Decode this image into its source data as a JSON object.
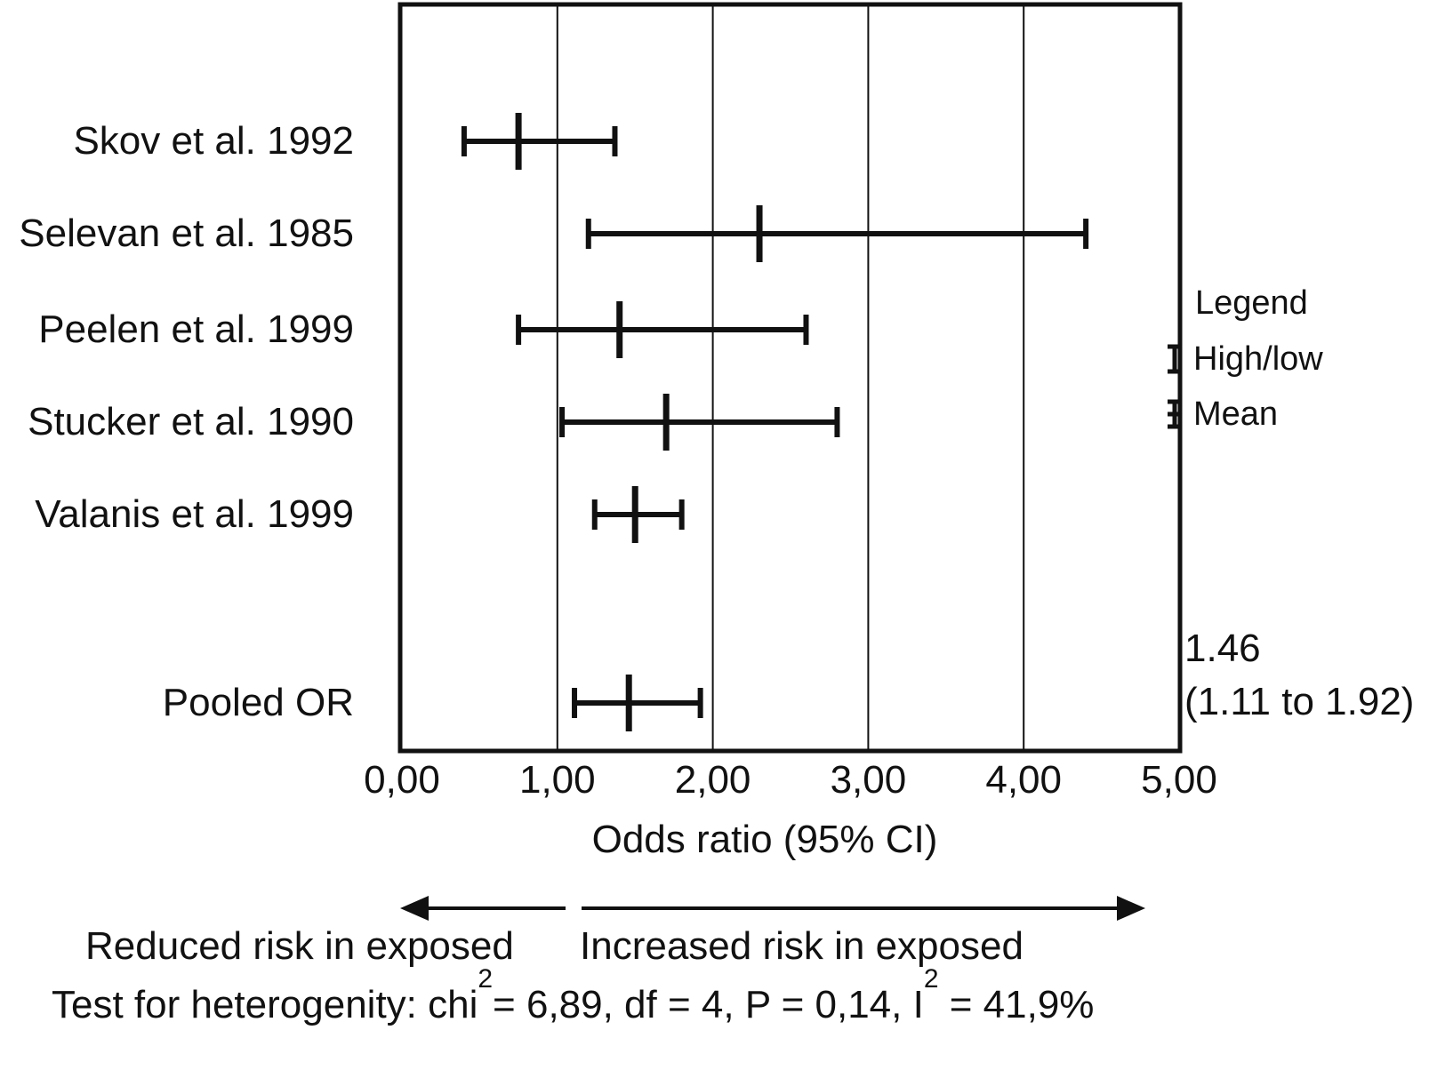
{
  "chart_data": {
    "type": "forest",
    "title": "",
    "xlabel": "Odds ratio (95% CI)",
    "xlim": [
      0,
      5
    ],
    "x_tick_labels": [
      "0,00",
      "1,00",
      "2,00",
      "3,00",
      "4,00",
      "5,00"
    ],
    "x_tick_values": [
      0,
      1,
      2,
      3,
      4,
      5
    ],
    "gridlines_at": [
      1,
      2,
      3,
      4
    ],
    "grid": "vertical",
    "legend_position": "right-outside",
    "categories": [
      "Skov et al. 1992",
      "Selevan et al. 1985",
      "Peelen et al. 1999",
      "Stucker et al. 1990",
      "Valanis et al. 1999",
      "Pooled OR"
    ],
    "series": [
      {
        "name": "Skov et al. 1992",
        "mean": 0.75,
        "ci_low": 0.4,
        "ci_high": 1.37
      },
      {
        "name": "Selevan et al. 1985",
        "mean": 2.3,
        "ci_low": 1.2,
        "ci_high": 4.4
      },
      {
        "name": "Peelen et al. 1999",
        "mean": 1.4,
        "ci_low": 0.75,
        "ci_high": 2.6
      },
      {
        "name": "Stucker et al. 1990",
        "mean": 1.7,
        "ci_low": 1.03,
        "ci_high": 2.8
      },
      {
        "name": "Valanis et al. 1999",
        "mean": 1.5,
        "ci_low": 1.24,
        "ci_high": 1.8
      },
      {
        "name": "Pooled OR",
        "mean": 1.46,
        "ci_low": 1.11,
        "ci_high": 1.92,
        "pooled": true
      }
    ]
  },
  "legend": {
    "title": "Legend",
    "high_low_label": "High/low",
    "mean_label": "Mean"
  },
  "pooled_annotation": {
    "line1": "1.46",
    "line2": "(1.11 to 1.92)"
  },
  "directions": {
    "left": "Reduced risk in exposed",
    "right": "Increased risk in exposed"
  },
  "heterogeneity": {
    "prefix": "Test for heterogenity: chi",
    "sup1": "2",
    "mid": "= 6,89, df = 4, P = 0,14, I",
    "sup2": "2",
    "suffix": " = 41,9%"
  },
  "colors": {
    "ink": "#111111",
    "background": "#ffffff"
  }
}
